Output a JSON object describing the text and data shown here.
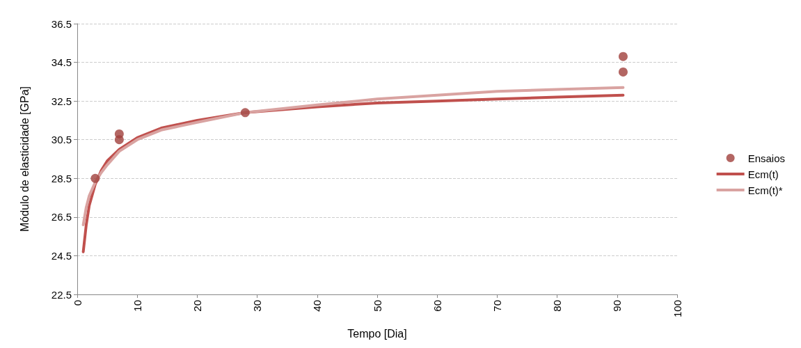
{
  "chart_data": {
    "type": "line",
    "xlabel": "Tempo [Dia]",
    "ylabel": "Módulo de elasticidade [GPa]",
    "xlim": [
      0,
      100
    ],
    "xticks": [
      0,
      10,
      20,
      30,
      40,
      50,
      60,
      70,
      80,
      90,
      100
    ],
    "ylim": [
      22.5,
      36.5
    ],
    "yticks": [
      22.5,
      24.5,
      26.5,
      28.5,
      30.5,
      32.5,
      34.5,
      36.5
    ],
    "grid": "y",
    "legend": "right",
    "series": [
      {
        "name": "Ensaios",
        "type": "scatter",
        "marker": "circle",
        "color": "#a0403c",
        "x": [
          3,
          7,
          7,
          28,
          91,
          91
        ],
        "values": [
          28.5,
          30.8,
          30.5,
          31.9,
          34.8,
          34.0
        ]
      },
      {
        "name": "Ecm(t)",
        "marker": "none",
        "color": "#c0504d",
        "x": [
          1,
          1.5,
          2,
          3,
          4,
          5,
          7,
          10,
          14,
          20,
          28,
          40,
          50,
          60,
          70,
          80,
          91
        ],
        "values": [
          24.7,
          26.1,
          27.1,
          28.2,
          28.9,
          29.4,
          30.0,
          30.6,
          31.1,
          31.5,
          31.9,
          32.2,
          32.4,
          32.5,
          32.6,
          32.7,
          32.8
        ]
      },
      {
        "name": "Ecm(t)*",
        "marker": "none",
        "color": "#d9a3a1",
        "x": [
          1,
          1.5,
          2,
          3,
          4,
          5,
          7,
          10,
          14,
          20,
          28,
          40,
          50,
          60,
          70,
          80,
          91
        ],
        "values": [
          26.1,
          27.0,
          27.6,
          28.3,
          28.8,
          29.2,
          29.9,
          30.5,
          31.0,
          31.4,
          31.9,
          32.3,
          32.6,
          32.8,
          33.0,
          33.1,
          33.2
        ]
      }
    ]
  }
}
